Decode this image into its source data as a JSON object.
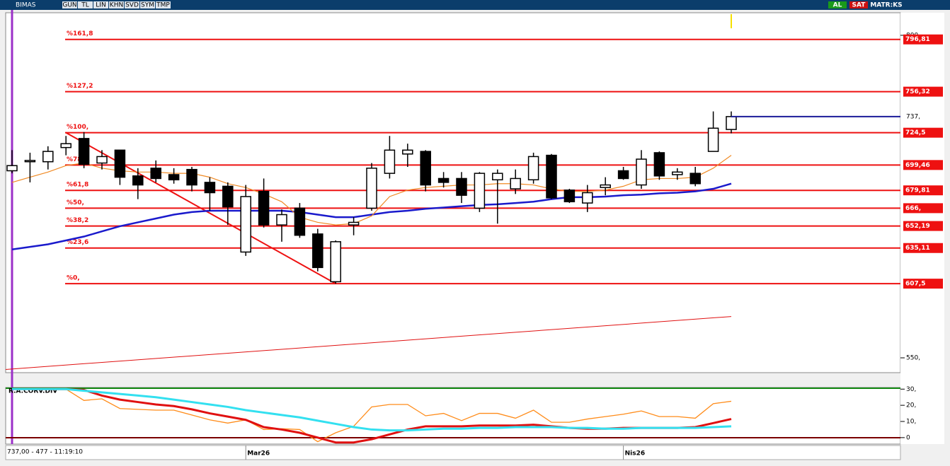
{
  "toolbar": {
    "symbol": "BIMAS",
    "items": [
      "GUN",
      "TL",
      "LIN",
      "KHN",
      "SVD",
      "SYM",
      "TMP"
    ],
    "right": [
      "AL",
      "SAT",
      "MATR:KS"
    ]
  },
  "status": "737,00 - 477 - 11:19:10",
  "chart_data": [
    {
      "type": "candlestick",
      "categories": [
        null,
        null,
        null,
        null,
        null,
        null,
        null,
        null,
        null,
        null,
        null,
        null,
        null,
        "Mar26",
        null,
        null,
        null,
        null,
        null,
        null,
        null,
        null,
        null,
        null,
        null,
        null,
        null,
        null,
        null,
        null,
        null,
        null,
        null,
        null,
        "Nis26",
        null,
        null,
        null,
        null,
        null,
        null
      ],
      "open": [
        695,
        702,
        702,
        713,
        720,
        701,
        711,
        691,
        697,
        692,
        696,
        686,
        683,
        632,
        679,
        653,
        666,
        646,
        609,
        653,
        666,
        693,
        708,
        710,
        689,
        689,
        666,
        688,
        681,
        688,
        707,
        680,
        670,
        682,
        695,
        684,
        709,
        692,
        693,
        710,
        727
      ],
      "high": [
        711,
        709,
        714,
        722,
        725,
        711,
        711,
        697,
        703,
        697,
        698,
        690,
        686,
        684,
        689,
        665,
        670,
        650,
        641,
        659,
        701,
        722,
        716,
        711,
        694,
        694,
        694,
        696,
        696,
        709,
        708,
        681,
        684,
        690,
        698,
        711,
        710,
        697,
        698,
        741,
        741
      ],
      "low": [
        693,
        686,
        696,
        707,
        697,
        696,
        684,
        673,
        686,
        685,
        679,
        664,
        653,
        629,
        651,
        640,
        643,
        617,
        607.5,
        645,
        664,
        689,
        698,
        679,
        682,
        670,
        663,
        654,
        677,
        685,
        673,
        670,
        663,
        676,
        688,
        681,
        688,
        688,
        683,
        710,
        724
      ],
      "close": [
        699,
        703,
        710,
        716,
        700,
        706,
        690,
        684,
        689,
        688,
        684,
        678,
        667,
        675,
        653,
        661,
        645,
        620,
        640,
        655,
        697,
        711,
        711,
        684,
        686,
        676,
        693,
        693,
        689,
        706,
        674,
        671,
        678,
        684,
        689,
        704,
        691,
        694,
        685,
        728,
        737
      ],
      "series": [
        {
          "color": "#1a1acc",
          "values": [
            634,
            636,
            638,
            641,
            644,
            648,
            652,
            655,
            658,
            661,
            663,
            664,
            664,
            664,
            664,
            664,
            663,
            661,
            659,
            659,
            661,
            663,
            664,
            665.5,
            666.5,
            667.5,
            668.5,
            669,
            670,
            671,
            673,
            674.5,
            674.5,
            675,
            676,
            676.5,
            677.5,
            678,
            679,
            681,
            685
          ]
        },
        {
          "color": "#f08a24",
          "values": [
            686,
            690,
            694,
            699,
            701,
            697,
            695,
            694,
            694,
            693,
            693,
            690,
            685,
            682,
            677,
            671,
            659,
            655,
            653,
            654,
            660,
            675,
            680,
            682,
            683,
            684,
            684,
            685,
            685,
            684,
            681,
            679,
            679,
            680,
            683,
            688,
            689,
            689,
            690,
            697,
            707
          ]
        }
      ],
      "trendline": {
        "color": "#e01010",
        "values": [
          541,
          582
        ]
      },
      "fib_color": "#ee1111",
      "fib_levels": [
        {
          "label": "%161,8",
          "value": 796.81,
          "value_label": "796,81"
        },
        {
          "label": "%127,2",
          "value": 756.32,
          "value_label": "756,32"
        },
        {
          "label": "%100,",
          "value": 724.5,
          "value_label": "724,5"
        },
        {
          "label": "%78,6",
          "value": 699.46,
          "value_label": "699,46"
        },
        {
          "label": "%61,8",
          "value": 679.81,
          "value_label": "679,81"
        },
        {
          "label": "%50,",
          "value": 666,
          "value_label": "666,"
        },
        {
          "label": "%38,2",
          "value": 652.19,
          "value_label": "652,19"
        },
        {
          "label": "%23,6",
          "value": 635.11,
          "value_label": "635,11"
        },
        {
          "label": "%0,",
          "value": 607.5,
          "value_label": "607,5"
        }
      ],
      "last_price": {
        "value": 737,
        "label": "737,",
        "color": "#1a1a99"
      },
      "ylim": [
        538.5,
        817.5
      ],
      "yticks": [
        {
          "value": 800,
          "label": "800,"
        },
        {
          "value": 550,
          "label": "550,"
        }
      ]
    },
    {
      "type": "line",
      "title": "R.A.CORV.DIV",
      "series": [
        {
          "color": "#ff8c1a",
          "values": [
            30,
            30,
            30,
            30,
            23,
            24,
            18,
            17.5,
            17,
            17,
            14,
            11,
            9,
            11,
            5,
            5.5,
            5,
            -2.5,
            3,
            7,
            19,
            20.5,
            20.5,
            13.5,
            15,
            10.5,
            15,
            15,
            12,
            17,
            9.5,
            9.5,
            11.5,
            13,
            14.5,
            16.5,
            13,
            13,
            12,
            21,
            22.5
          ]
        },
        {
          "color": "#e01010",
          "values": [
            30,
            30,
            30,
            30,
            29.5,
            26,
            23.5,
            22,
            20.5,
            19.5,
            17.5,
            15,
            13,
            11,
            6.5,
            5,
            3,
            0,
            -3,
            -3,
            -1,
            2,
            5,
            7,
            7,
            7,
            7.5,
            7.5,
            7.5,
            8,
            7,
            6,
            5.5,
            5.5,
            6,
            6,
            6,
            6,
            6.5,
            9,
            11.5
          ]
        },
        {
          "color": "#33e0f0",
          "values": [
            30,
            30,
            30,
            30,
            29,
            28,
            27,
            26,
            25,
            23.5,
            22,
            20.5,
            19,
            17,
            15.5,
            14,
            12.5,
            10.5,
            8.5,
            6.5,
            5,
            4.5,
            4.5,
            5,
            5.5,
            5.5,
            6,
            6,
            6.5,
            6.5,
            6.5,
            6,
            6,
            5.5,
            5.5,
            6,
            6,
            6,
            6,
            6.5,
            7
          ]
        }
      ],
      "ylim": [
        -4,
        31
      ],
      "yticks": [
        {
          "value": 30,
          "label": "30,"
        },
        {
          "value": 20,
          "label": "20,"
        },
        {
          "value": 10,
          "label": "10,"
        },
        {
          "value": 0,
          "label": "0"
        }
      ]
    }
  ]
}
